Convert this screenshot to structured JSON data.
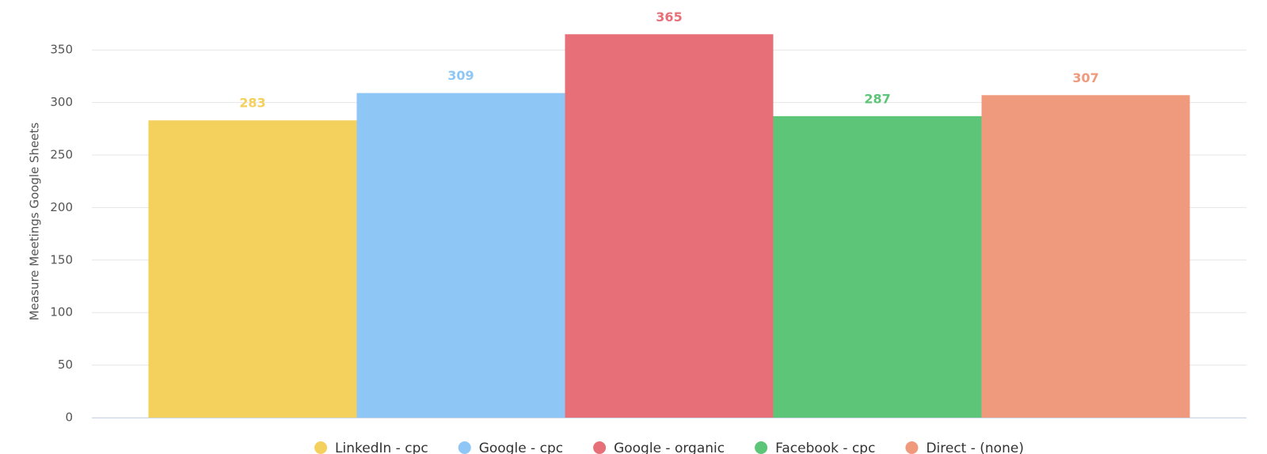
{
  "chart_data": {
    "type": "bar",
    "y_label": "Measure Meetings Google Sheets",
    "series": [
      {
        "name": "LinkedIn - cpc",
        "color": "#f4d05d",
        "values": [
          283
        ]
      },
      {
        "name": "Google - cpc",
        "color": "#8ec7f5",
        "values": [
          309
        ]
      },
      {
        "name": "Google - organic",
        "color": "#e77078",
        "values": [
          365
        ]
      },
      {
        "name": "Facebook - cpc",
        "color": "#5dc578",
        "values": [
          287
        ]
      },
      {
        "name": "Direct - (none)",
        "color": "#ef9a7c",
        "values": [
          307
        ]
      }
    ],
    "ylim": [
      0,
      375
    ],
    "yticks": [
      0,
      50,
      100,
      150,
      200,
      250,
      300,
      350
    ],
    "grid": true,
    "legend": "bottom"
  }
}
